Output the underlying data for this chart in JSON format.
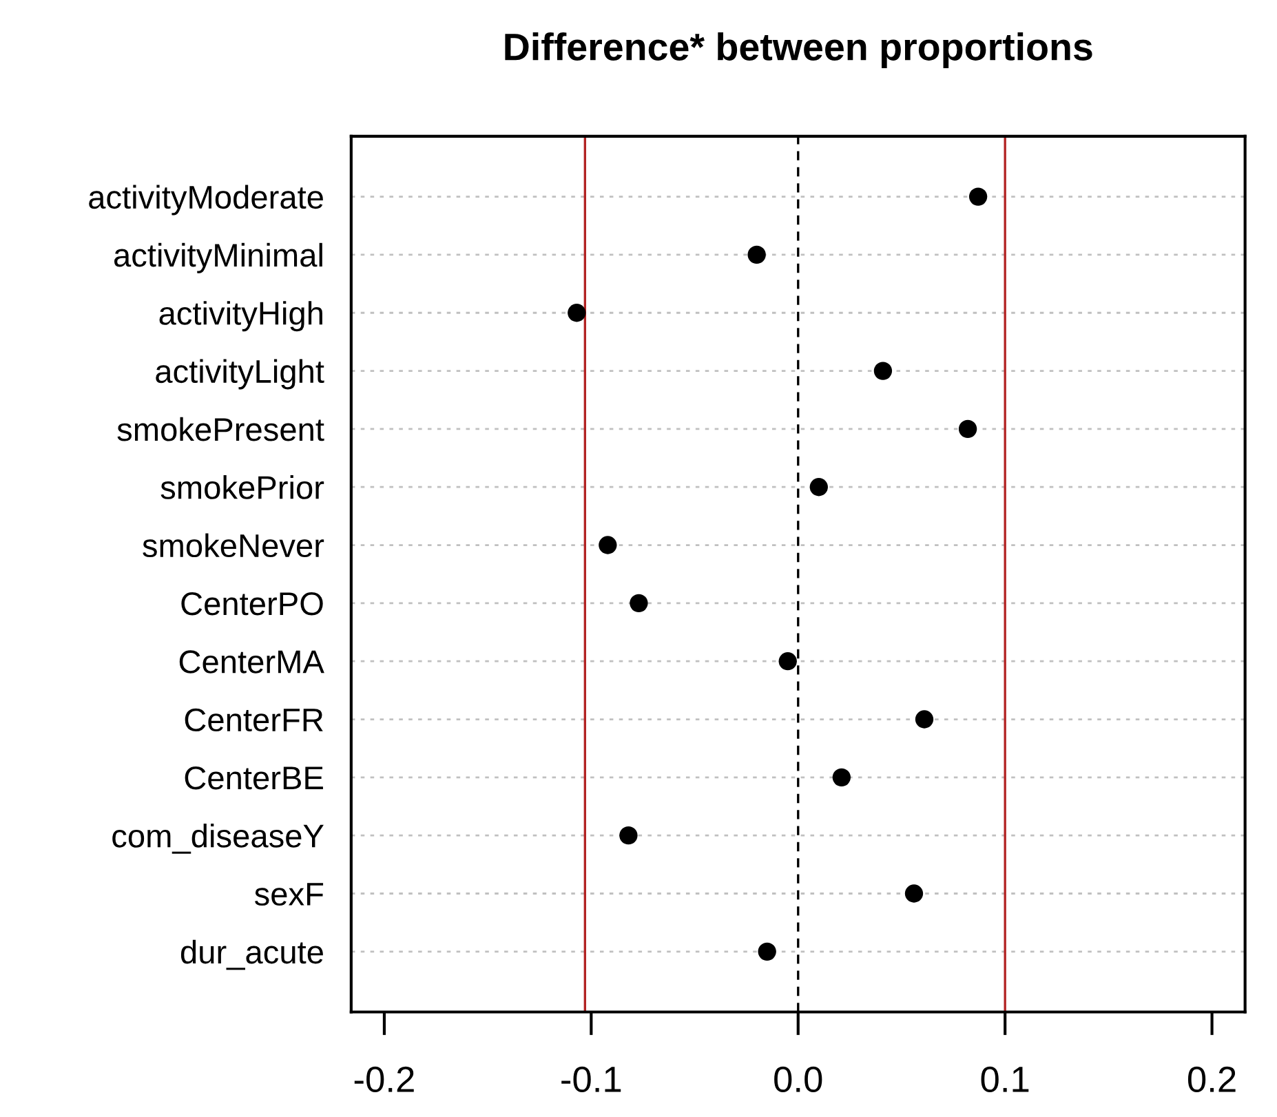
{
  "chart_data": {
    "type": "scatter",
    "title": "Difference* between proportions",
    "orientation": "horizontal",
    "categories": [
      "activityModerate",
      "activityMinimal",
      "activityHigh",
      "activityLight",
      "smokePresent",
      "smokePrior",
      "smokeNever",
      "CenterPO",
      "CenterMA",
      "CenterFR",
      "CenterBE",
      "com_diseaseY",
      "sexF",
      "dur_acute"
    ],
    "series": [
      {
        "color": "#000000",
        "values": [
          0.087,
          -0.02,
          -0.107,
          0.041,
          0.082,
          0.01,
          -0.092,
          -0.077,
          -0.005,
          0.061,
          0.021,
          -0.082,
          0.056,
          -0.015
        ]
      }
    ],
    "marker": "circle",
    "xlim": [
      -0.216,
      0.216
    ],
    "xticks": [
      {
        "value": -0.2,
        "label": "-0.2"
      },
      {
        "value": -0.1,
        "label": "-0.1"
      },
      {
        "value": 0,
        "label": "0.0"
      },
      {
        "value": 0.1,
        "label": "0.1"
      },
      {
        "value": 0.2,
        "label": "0.2"
      }
    ],
    "grid": "y",
    "ref_lines": [
      {
        "axis": "x",
        "value": 0,
        "color": "#000000",
        "line_style": "dashed"
      },
      {
        "axis": "x",
        "value": -0.103,
        "color": "#b22222",
        "line_style": "solid"
      },
      {
        "axis": "x",
        "value": 0.1,
        "color": "#b22222",
        "line_style": "solid"
      }
    ]
  }
}
